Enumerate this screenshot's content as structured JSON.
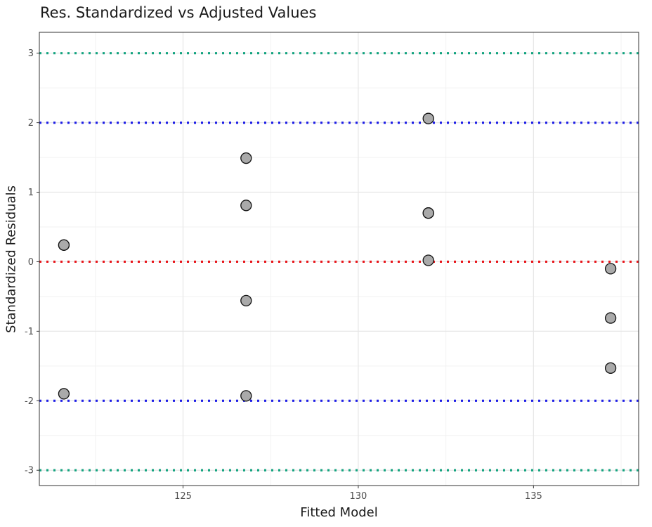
{
  "chart_data": {
    "type": "scatter",
    "title": "Res. Standardized vs Adjusted Values",
    "xlabel": "Fitted Model",
    "ylabel": "Standardized Residuals",
    "xlim": [
      120.9,
      138.0
    ],
    "ylim": [
      -3.22,
      3.3
    ],
    "x_ticks": [
      125,
      130,
      135
    ],
    "x_tick_labels": [
      "125",
      "130",
      "135"
    ],
    "y_ticks": [
      -3,
      -2,
      -1,
      0,
      1,
      2,
      3
    ],
    "y_tick_labels": [
      "-3",
      "-2",
      "-1",
      "0",
      "1",
      "2",
      "3"
    ],
    "grid": true,
    "reference_lines": [
      {
        "y": 3,
        "color": "#12a37f",
        "style": "dotted"
      },
      {
        "y": 2,
        "color": "#1f1fe6",
        "style": "dotted"
      },
      {
        "y": 0,
        "color": "#e8161b",
        "style": "dotted"
      },
      {
        "y": -2,
        "color": "#1f1fe6",
        "style": "dotted"
      },
      {
        "y": -3,
        "color": "#12a37f",
        "style": "dotted"
      }
    ],
    "point_fill": "#aaaaaa",
    "point_stroke": "#111111",
    "points": [
      {
        "x": 121.6,
        "y": 0.24
      },
      {
        "x": 121.6,
        "y": 0.24
      },
      {
        "x": 121.6,
        "y": -1.9
      },
      {
        "x": 126.8,
        "y": 1.49
      },
      {
        "x": 126.8,
        "y": 0.81
      },
      {
        "x": 126.8,
        "y": -0.56
      },
      {
        "x": 126.8,
        "y": -1.93
      },
      {
        "x": 132.0,
        "y": 2.06
      },
      {
        "x": 132.0,
        "y": 0.7
      },
      {
        "x": 132.0,
        "y": 0.7
      },
      {
        "x": 132.0,
        "y": 0.02
      },
      {
        "x": 137.2,
        "y": -0.1
      },
      {
        "x": 137.2,
        "y": -0.81
      },
      {
        "x": 137.2,
        "y": -1.53
      }
    ]
  }
}
